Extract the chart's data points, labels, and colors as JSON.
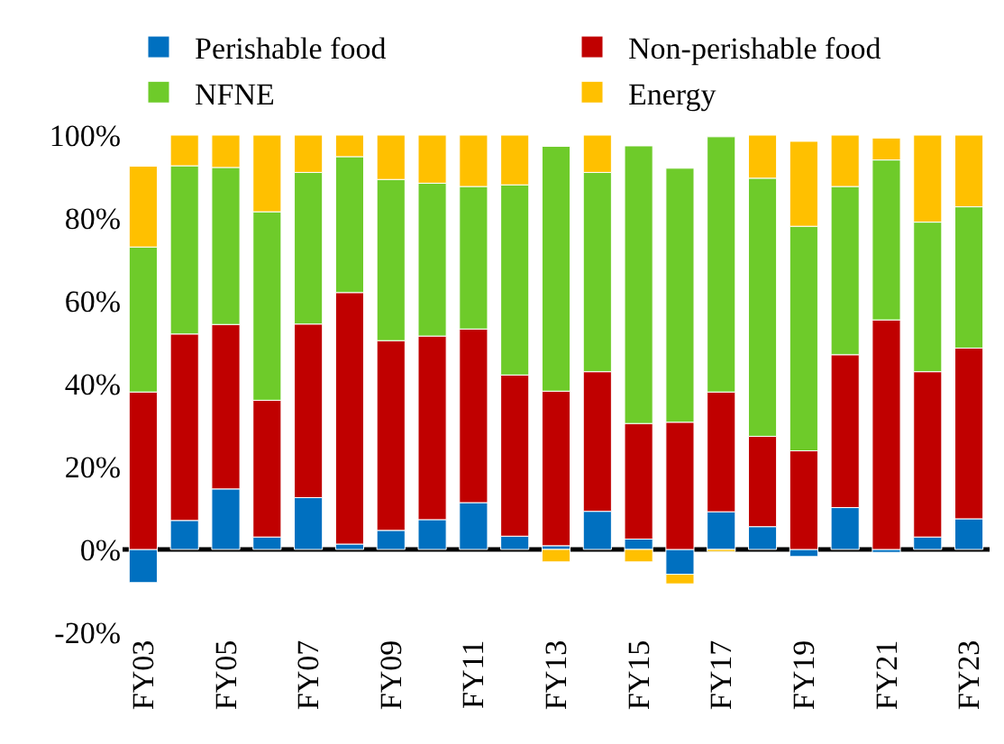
{
  "chart_data": {
    "type": "bar",
    "stacked": true,
    "categories": [
      "FY03",
      null,
      "FY05",
      null,
      "FY07",
      null,
      "FY09",
      null,
      "FY11",
      null,
      "FY13",
      null,
      "FY15",
      null,
      "FY17",
      null,
      "FY19",
      null,
      "FY21",
      null,
      "FY23"
    ],
    "series": [
      {
        "name": "Perishable food",
        "color": "#0070c0",
        "values": [
          -8,
          7,
          14.6,
          3,
          12.5,
          1.3,
          4.6,
          7.2,
          11.3,
          3.2,
          0.9,
          9.2,
          2.5,
          -6,
          9.1,
          5.5,
          -1.7,
          10.1,
          -0.7,
          3,
          7.4
        ]
      },
      {
        "name": "Non-perishable food",
        "color": "#c00000",
        "values": [
          38,
          45,
          39.7,
          33,
          41.9,
          60.7,
          45.8,
          44.3,
          41.9,
          38.9,
          37.3,
          33.7,
          27.9,
          30.7,
          28.9,
          21.8,
          23.8,
          36.9,
          55.4,
          39.9,
          41.2
        ]
      },
      {
        "name": "NFNE",
        "color": "#6ecb2a",
        "values": [
          35,
          40.6,
          37.9,
          45.5,
          36.6,
          32.8,
          38.9,
          36.9,
          34.4,
          45.9,
          59.1,
          48.1,
          67,
          61.3,
          61.6,
          62.3,
          54.2,
          40.6,
          38.6,
          36.1,
          34.1
        ]
      },
      {
        "name": "Energy",
        "color": "#ffc000",
        "values": [
          19.5,
          7.4,
          7.8,
          18.5,
          9,
          5.2,
          10.7,
          11.6,
          12.4,
          12,
          -3,
          9,
          -3,
          -2.3,
          -0.5,
          10.4,
          20.5,
          12.4,
          5.3,
          21,
          17.3
        ]
      }
    ],
    "ylim": [
      -20,
      100
    ],
    "ref_lines": [
      {
        "axis": "y",
        "value": 0,
        "color": "#000000"
      }
    ],
    "yticks": [
      {
        "value": -20,
        "label": "-20%"
      },
      {
        "value": 0,
        "label": "0%"
      },
      {
        "value": 20,
        "label": "20%"
      },
      {
        "value": 40,
        "label": "40%"
      },
      {
        "value": 60,
        "label": "60%"
      },
      {
        "value": 80,
        "label": "80%"
      },
      {
        "value": 100,
        "label": "100%"
      }
    ],
    "grid": false,
    "legend": "top"
  }
}
